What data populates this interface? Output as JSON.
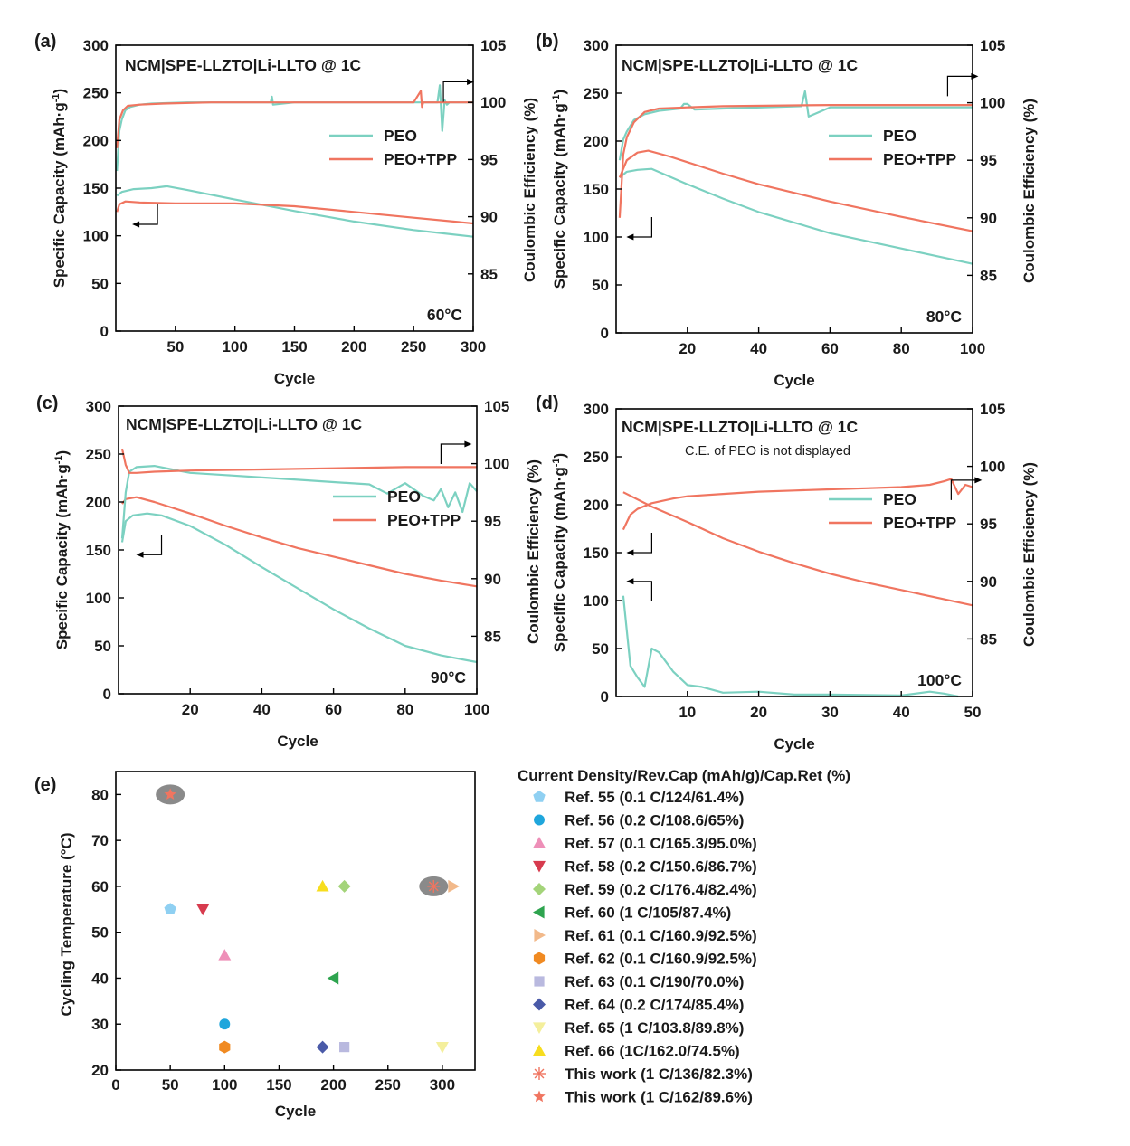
{
  "colors": {
    "peo": "#7cd1c1",
    "tpp": "#f07560",
    "axis": "#000000",
    "halo": "#8a8a8a"
  },
  "panels": [
    {
      "id": "a",
      "label": "(a)",
      "title": "NCM|SPE-LLZTO|Li-LLTO @ 1C",
      "temp": "60°C",
      "note": "",
      "xlabel": "Cycle",
      "ylabel_left": "Specific Capacity (mAh·g⁻¹)",
      "ylabel_right": "Coulombic Efficiency (%)",
      "xlim": [
        0,
        300
      ],
      "xticks": [
        50,
        100,
        150,
        200,
        250,
        300
      ],
      "ylim": [
        0,
        300
      ],
      "yticks": [
        0,
        50,
        100,
        150,
        200,
        250,
        300
      ],
      "y2lim": [
        80,
        105
      ],
      "y2ticks": [
        85,
        90,
        95,
        100,
        105
      ],
      "legend": [
        "PEO",
        "PEO+TPP"
      ],
      "series": [
        {
          "name": "PEO",
          "kind": "capacity",
          "x": [
            1,
            5,
            15,
            30,
            43,
            60,
            100,
            150,
            200,
            250,
            300
          ],
          "y": [
            142,
            146,
            149,
            150,
            152,
            148,
            138,
            126,
            115,
            106,
            99
          ]
        },
        {
          "name": "PEO+TPP",
          "kind": "capacity",
          "x": [
            1,
            3,
            8,
            20,
            50,
            100,
            150,
            200,
            250,
            300
          ],
          "y": [
            125,
            133,
            136,
            135,
            134,
            134,
            131,
            125,
            119,
            113
          ]
        },
        {
          "name": "PEO",
          "kind": "ce",
          "x": [
            1,
            3,
            5,
            8,
            12,
            20,
            30,
            60,
            100,
            130,
            131,
            132,
            150,
            200,
            240,
            270,
            272,
            274,
            276,
            278,
            280,
            300
          ],
          "y": [
            94,
            97.5,
            98.5,
            99.3,
            99.6,
            99.8,
            99.9,
            100,
            100,
            100,
            100.5,
            99.8,
            100,
            100,
            100,
            100,
            101.5,
            97.5,
            100.2,
            99.8,
            100,
            100
          ]
        },
        {
          "name": "PEO+TPP",
          "kind": "ce",
          "x": [
            1,
            3,
            6,
            10,
            20,
            40,
            80,
            150,
            200,
            250,
            256,
            257,
            258,
            260,
            300
          ],
          "y": [
            96,
            98.5,
            99.3,
            99.7,
            99.8,
            99.9,
            100,
            100,
            100,
            100,
            101,
            99.6,
            100,
            100,
            100
          ]
        }
      ],
      "arrows": {
        "right_x": 275,
        "right_y": 101.8,
        "left_x": 35,
        "left_y": 112
      }
    },
    {
      "id": "b",
      "label": "(b)",
      "title": "NCM|SPE-LLZTO|Li-LLTO @ 1C",
      "temp": "80°C",
      "note": "",
      "xlabel": "Cycle",
      "ylabel_left": "Specific Capacity (mAh·g⁻¹)",
      "ylabel_right": "Coulombic Efficiency (%)",
      "xlim": [
        0,
        100
      ],
      "xticks": [
        20,
        40,
        60,
        80,
        100
      ],
      "ylim": [
        0,
        300
      ],
      "yticks": [
        0,
        50,
        100,
        150,
        200,
        250,
        300
      ],
      "y2lim": [
        80,
        105
      ],
      "y2ticks": [
        85,
        90,
        95,
        100,
        105
      ],
      "legend": [
        "PEO",
        "PEO+TPP"
      ],
      "series": [
        {
          "name": "PEO",
          "kind": "capacity",
          "x": [
            1,
            3,
            6,
            10,
            15,
            20,
            30,
            40,
            60,
            80,
            100
          ],
          "y": [
            162,
            168,
            170,
            171,
            163,
            155,
            140,
            126,
            104,
            88,
            72
          ]
        },
        {
          "name": "PEO+TPP",
          "kind": "capacity",
          "x": [
            1,
            3,
            6,
            9,
            15,
            20,
            30,
            40,
            60,
            80,
            100
          ],
          "y": [
            162,
            180,
            188,
            190,
            184,
            178,
            166,
            155,
            137,
            121,
            106
          ]
        },
        {
          "name": "PEO",
          "kind": "ce",
          "x": [
            1,
            2,
            3,
            5,
            8,
            12,
            18,
            19,
            20,
            22,
            30,
            52,
            53,
            54,
            60,
            100
          ],
          "y": [
            95,
            96.8,
            97.5,
            98.5,
            99,
            99.3,
            99.5,
            99.9,
            99.9,
            99.4,
            99.5,
            99.7,
            101,
            98.8,
            99.6,
            99.6
          ]
        },
        {
          "name": "PEO+TPP",
          "kind": "ce",
          "x": [
            1,
            2,
            3,
            5,
            8,
            12,
            20,
            30,
            60,
            100
          ],
          "y": [
            90,
            95.5,
            97,
            98.3,
            99.2,
            99.5,
            99.6,
            99.7,
            99.8,
            99.8
          ]
        }
      ],
      "arrows": {
        "right_x": 93,
        "right_y": 102.3,
        "left_x": 10,
        "left_y": 100
      }
    },
    {
      "id": "c",
      "label": "(c)",
      "title": "NCM|SPE-LLZTO|Li-LLTO @ 1C",
      "temp": "90°C",
      "note": "",
      "xlabel": "Cycle",
      "ylabel_left": "Specific Capacity (mAh·g⁻¹)",
      "ylabel_right": "Coulombic Efficiency (%)",
      "xlim": [
        0,
        100
      ],
      "xticks": [
        20,
        40,
        60,
        80,
        100
      ],
      "ylim": [
        0,
        300
      ],
      "yticks": [
        0,
        50,
        100,
        150,
        200,
        250,
        300
      ],
      "y2lim": [
        80,
        105
      ],
      "y2ticks": [
        85,
        90,
        95,
        100,
        105
      ],
      "legend": [
        "PEO",
        "PEO+TPP"
      ],
      "series": [
        {
          "name": "PEO",
          "kind": "capacity",
          "x": [
            1,
            2,
            4,
            8,
            12,
            20,
            30,
            40,
            50,
            60,
            70,
            80,
            90,
            100
          ],
          "y": [
            158,
            180,
            186,
            188,
            186,
            175,
            155,
            132,
            110,
            88,
            68,
            50,
            40,
            33
          ]
        },
        {
          "name": "PEO+TPP",
          "kind": "capacity",
          "x": [
            1,
            2,
            5,
            10,
            20,
            30,
            40,
            50,
            60,
            70,
            80,
            90,
            100
          ],
          "y": [
            198,
            203,
            205,
            200,
            188,
            175,
            163,
            152,
            143,
            134,
            125,
            118,
            112
          ]
        },
        {
          "name": "PEO",
          "kind": "ce",
          "x": [
            1,
            2,
            3,
            5,
            10,
            15,
            20,
            30,
            40,
            50,
            60,
            70,
            75,
            80,
            85,
            88,
            90,
            92,
            94,
            96,
            98,
            100
          ],
          "y": [
            93.5,
            97.5,
            99.3,
            99.7,
            99.8,
            99.5,
            99.2,
            99,
            98.8,
            98.6,
            98.4,
            98.2,
            97.4,
            98.3,
            97.2,
            96.8,
            97.8,
            96.2,
            97.5,
            95.8,
            98.3,
            97.6
          ]
        },
        {
          "name": "PEO+TPP",
          "kind": "ce",
          "x": [
            1,
            2,
            3,
            5,
            10,
            20,
            40,
            60,
            80,
            90,
            100
          ],
          "y": [
            101.3,
            99.9,
            99.2,
            99.2,
            99.3,
            99.4,
            99.5,
            99.6,
            99.7,
            99.7,
            99.7
          ]
        }
      ],
      "arrows": {
        "right_x": 90,
        "right_y": 101.7,
        "left_x": 12,
        "left_y": 145
      }
    },
    {
      "id": "d",
      "label": "(d)",
      "title": "NCM|SPE-LLZTO|Li-LLTO @ 1C",
      "temp": "100°C",
      "note": "C.E. of PEO is not displayed",
      "xlabel": "Cycle",
      "ylabel_left": "Specific Capacity (mAh·g⁻¹)",
      "ylabel_right": "Coulombic Efficiency (%)",
      "xlim": [
        0,
        50
      ],
      "xticks": [
        10,
        20,
        30,
        40,
        50
      ],
      "ylim": [
        0,
        300
      ],
      "yticks": [
        0,
        50,
        100,
        150,
        200,
        250,
        300
      ],
      "y2lim": [
        80,
        105
      ],
      "y2ticks": [
        85,
        90,
        95,
        100,
        105
      ],
      "legend": [
        "PEO",
        "PEO+TPP"
      ],
      "series": [
        {
          "name": "PEO",
          "kind": "capacity",
          "x": [
            1,
            2,
            3,
            4,
            5,
            6,
            7,
            8,
            10,
            12,
            15,
            20,
            25,
            30,
            40,
            44,
            46,
            48
          ],
          "y": [
            105,
            32,
            20,
            10,
            50,
            46,
            36,
            26,
            12,
            10,
            4,
            5,
            2,
            2,
            1,
            5,
            3,
            0
          ]
        },
        {
          "name": "PEO+TPP",
          "kind": "capacity",
          "x": [
            1,
            5,
            10,
            15,
            20,
            25,
            30,
            35,
            40,
            45,
            50
          ],
          "y": [
            213,
            198,
            182,
            165,
            151,
            139,
            128,
            119,
            111,
            103,
            95
          ]
        },
        {
          "name": "PEO+TPP",
          "kind": "ce",
          "x": [
            1,
            2,
            3,
            5,
            8,
            10,
            15,
            20,
            25,
            30,
            35,
            40,
            44,
            46,
            47,
            48,
            49,
            50
          ],
          "y": [
            94.5,
            95.8,
            96.3,
            96.8,
            97.2,
            97.4,
            97.6,
            97.8,
            97.9,
            98,
            98.1,
            98.2,
            98.4,
            98.7,
            98.9,
            97.6,
            98.4,
            98.2
          ]
        }
      ],
      "arrows": {
        "right_x": 47,
        "right_y": 98.8,
        "left_x": 5,
        "left_y": 150
      }
    }
  ],
  "scatter": {
    "label": "(e)",
    "xlabel": "Cycle",
    "ylabel": "Cycling Temperature (°C)",
    "xlim": [
      0,
      330
    ],
    "xticks": [
      0,
      50,
      100,
      150,
      200,
      250,
      300
    ],
    "ylim": [
      20,
      85
    ],
    "yticks": [
      20,
      30,
      40,
      50,
      60,
      70,
      80
    ],
    "legend_title": "Current Density/Rev.Cap (mAh/g)/Cap.Ret (%)",
    "points": [
      {
        "label": "Ref. 55 (0.1 C/124/61.4%)",
        "shape": "pentagon",
        "color": "#8fd0f2",
        "x": 50,
        "y": 55
      },
      {
        "label": "Ref. 56 (0.2 C/108.6/65%)",
        "shape": "circle",
        "color": "#1fa6dc",
        "x": 100,
        "y": 30
      },
      {
        "label": "Ref. 57 (0.1 C/165.3/95.0%)",
        "shape": "triangle-up",
        "color": "#ee8fb8",
        "x": 100,
        "y": 45
      },
      {
        "label": "Ref. 58 (0.2 C/150.6/86.7%)",
        "shape": "triangle-down",
        "color": "#d73b4e",
        "x": 80,
        "y": 55
      },
      {
        "label": "Ref. 59 (0.2 C/176.4/82.4%)",
        "shape": "diamond",
        "color": "#a4d47a",
        "x": 210,
        "y": 60
      },
      {
        "label": "Ref. 60 (1 C/105/87.4%)",
        "shape": "triangle-left",
        "color": "#2ea44f",
        "x": 200,
        "y": 40
      },
      {
        "label": "Ref. 61 (0.1 C/160.9/92.5%)",
        "shape": "triangle-right",
        "color": "#f2b98a",
        "x": 310,
        "y": 60
      },
      {
        "label": "Ref. 62 (0.1 C/160.9/92.5%)",
        "shape": "hexagon",
        "color": "#f08a22",
        "x": 100,
        "y": 25
      },
      {
        "label": "Ref. 63 (0.1 C/190/70.0%)",
        "shape": "square",
        "color": "#b9b9df",
        "x": 210,
        "y": 25
      },
      {
        "label": "Ref. 64 (0.2 C/174/85.4%)",
        "shape": "diamond",
        "color": "#4a5aa8",
        "x": 190,
        "y": 25
      },
      {
        "label": "Ref. 65 (1 C/103.8/89.8%)",
        "shape": "triangle-down",
        "color": "#f4ef9c",
        "x": 300,
        "y": 25
      },
      {
        "label": "Ref. 66 (1C/162.0/74.5%)",
        "shape": "triangle-up",
        "color": "#f7dd1e",
        "x": 190,
        "y": 60
      },
      {
        "label": "This work (1 C/136/82.3%)",
        "shape": "asterisk",
        "color": "#f07560",
        "x": 292,
        "y": 60,
        "halo": true
      },
      {
        "label": "This work (1 C/162/89.6%)",
        "shape": "star",
        "color": "#f07560",
        "x": 50,
        "y": 80,
        "halo": true
      }
    ]
  }
}
